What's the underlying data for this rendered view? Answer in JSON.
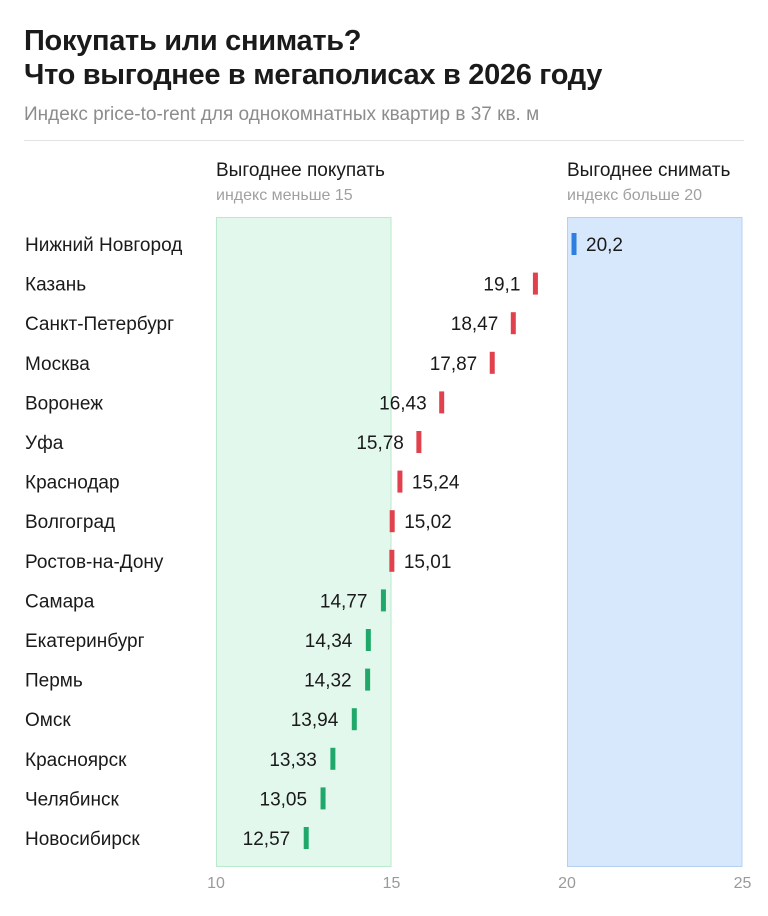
{
  "chart_data": {
    "type": "bar",
    "title": [
      "Покупать или снимать?",
      "Что выгоднее в мегаполисах в 2026 году"
    ],
    "subtitle": "Индекс price-to-rent для однокомнатных квартир в 37 кв. м",
    "xlim": [
      10,
      25
    ],
    "x_ticks": [
      "10",
      "15",
      "20",
      "25"
    ],
    "zones": {
      "buy": {
        "title": "Выгоднее покупать",
        "subtitle": "индекс меньше 15",
        "range": [
          10,
          15
        ],
        "color": "#e3f8ec",
        "border": "#b9e9cb"
      },
      "rent": {
        "title": "Выгоднее снимать",
        "subtitle": "индекс больше 20",
        "range": [
          20,
          25
        ],
        "color": "#d7e8fc",
        "border": "#b4d0f3"
      }
    },
    "colors": {
      "buy": "#1fa86a",
      "middle": "#e0414c",
      "rent": "#2e7fe0"
    },
    "categories": [
      "Нижний Новгород",
      "Казань",
      "Санкт-Петербург",
      "Москва",
      "Воронеж",
      "Уфа",
      "Краснодар",
      "Волгоград",
      "Ростов-на-Дону",
      "Самара",
      "Екатеринбург",
      "Пермь",
      "Омск",
      "Красноярск",
      "Челябинск",
      "Новосибирск"
    ],
    "values": [
      20.2,
      19.1,
      18.47,
      17.87,
      16.43,
      15.78,
      15.24,
      15.02,
      15.01,
      14.77,
      14.34,
      14.32,
      13.94,
      13.33,
      13.05,
      12.57
    ],
    "value_labels": [
      "20,2",
      "19,1",
      "18,47",
      "17,87",
      "16,43",
      "15,78",
      "15,24",
      "15,02",
      "15,01",
      "14,77",
      "14,34",
      "14,32",
      "13,94",
      "13,33",
      "13,05",
      "12,57"
    ]
  }
}
